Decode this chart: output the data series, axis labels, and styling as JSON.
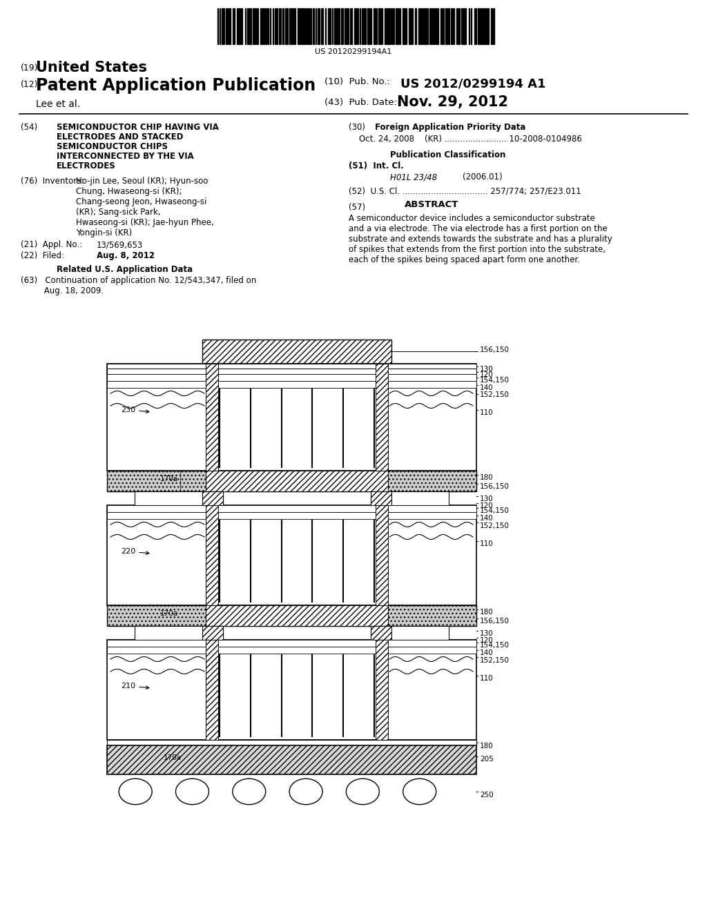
{
  "bg_color": "#ffffff",
  "barcode_text": "US 20120299194A1",
  "country_small": "(19)",
  "country_big": "United States",
  "pub_type_small": "(12)",
  "pub_type_big": "Patent Application Publication",
  "authors": "Lee et al.",
  "pub_no_label": "(10)  Pub. No.:",
  "pub_no": "US 2012/0299194 A1",
  "pub_date_label": "(43)  Pub. Date:",
  "pub_date": "Nov. 29, 2012",
  "title54_label": "(54)",
  "title54_line1": "SEMICONDUCTOR CHIP HAVING VIA",
  "title54_line2": "ELECTRODES AND STACKED",
  "title54_line3": "SEMICONDUCTOR CHIPS",
  "title54_line4": "INTERCONNECTED BY THE VIA",
  "title54_line5": "ELECTRODES",
  "inv_label": "(76)  Inventors:",
  "inv_text": "Ho-jin Lee, Seoul (KR); Hyun-soo\nChung, Hwaseong-si (KR);\nChang-seong Jeon, Hwaseong-si\n(KR); Sang-sick Park,\nHwaseong-si (KR); Jae-hyun Phee,\nYongin-si (KR)",
  "appl_no_label": "(21)  Appl. No.:",
  "appl_no": "13/569,653",
  "filed_label": "(22)  Filed:",
  "filed": "Aug. 8, 2012",
  "related_label": "Related U.S. Application Data",
  "cont_text": "(63)   Continuation of application No. 12/543,347, filed on\n         Aug. 18, 2009.",
  "foreign_num": "(30)",
  "foreign_title": "Foreign Application Priority Data",
  "foreign_data": "Oct. 24, 2008    (KR) ........................ 10-2008-0104986",
  "pub_class_title": "Publication Classification",
  "int_cl_label": "(51)  Int. Cl.",
  "int_cl_code": "H01L 23/48",
  "int_cl_year": "(2006.01)",
  "us_cl_text": "(52)  U.S. Cl. ................................. 257/774; 257/E23.011",
  "abstract_num": "(57)",
  "abstract_title": "ABSTRACT",
  "abstract_body": "A semiconductor device includes a semiconductor substrate\nand a via electrode. The via electrode has a first portion on the\nsubstrate and extends towards the substrate and has a plurality\nof spikes that extends from the first portion into the substrate,\neach of the spikes being spaced apart form one another."
}
